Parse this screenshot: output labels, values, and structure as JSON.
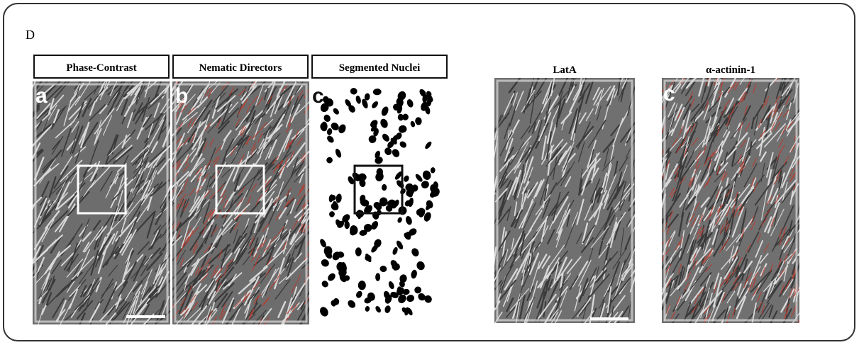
{
  "panel_label": "D",
  "panels": [
    {
      "title": "Phase-Contrast",
      "letter": "a"
    },
    {
      "title": "Nematic Directors",
      "letter": "b"
    },
    {
      "title": "Segmented Nuclei",
      "letter": "c"
    },
    {
      "title": "LatA"
    },
    {
      "title": "α-actinin-1",
      "letter": "c"
    }
  ]
}
